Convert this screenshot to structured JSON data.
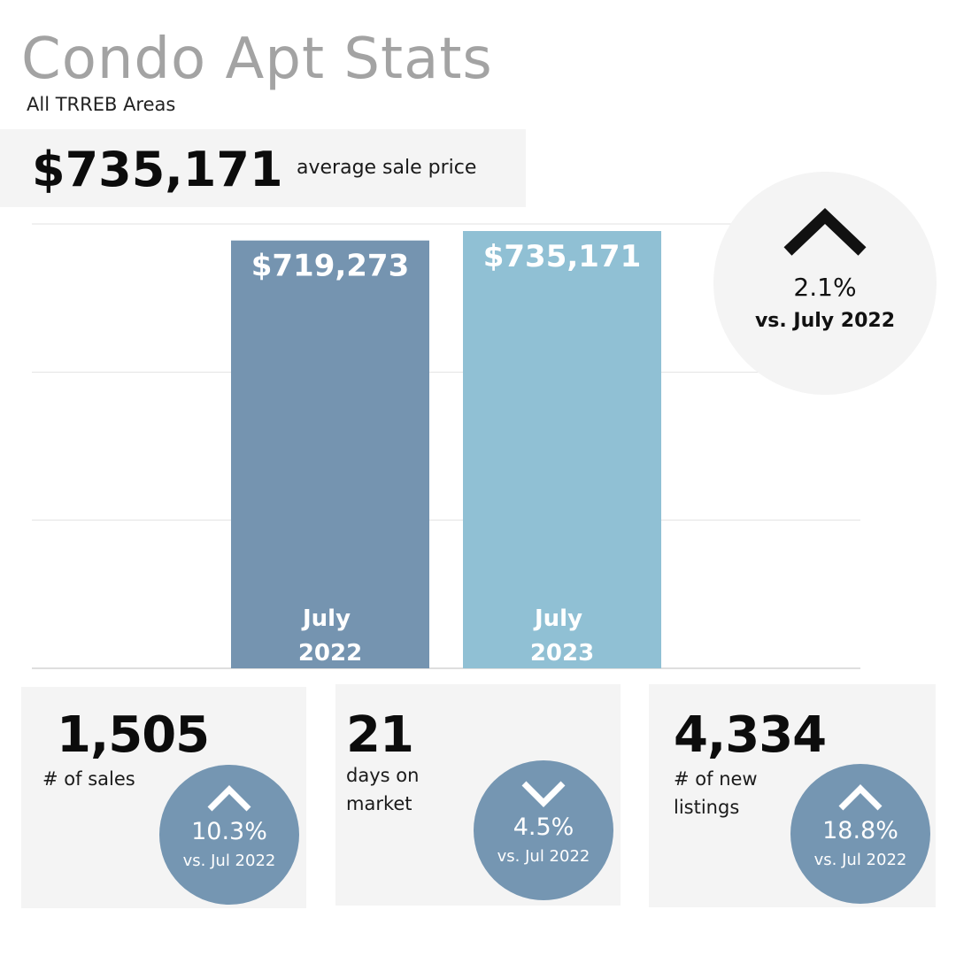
{
  "header": {
    "title": "Condo Apt Stats",
    "subtitle": "All TRREB Areas"
  },
  "headline": {
    "price": "$735,171",
    "label": "average sale price"
  },
  "chart_data": {
    "type": "bar",
    "title": "",
    "xlabel": "",
    "ylabel": "",
    "ylim": [
      0,
      735171
    ],
    "grid": true,
    "categories": [
      "July 2022",
      "July 2023"
    ],
    "category_lines": [
      [
        "July",
        "2022"
      ],
      [
        "July",
        "2023"
      ]
    ],
    "values": [
      719273,
      735171
    ],
    "value_labels": [
      "$719,273",
      "$735,171"
    ],
    "colors": [
      "#7594b0",
      "#90c0d4"
    ]
  },
  "change": {
    "direction": "up",
    "percent": "2.1%",
    "comparison": "vs. July 2022"
  },
  "stats": [
    {
      "value": "1,505",
      "label_lines": [
        "# of sales"
      ],
      "direction": "up",
      "percent": "10.3%",
      "comparison": "vs. Jul 2022"
    },
    {
      "value": "21",
      "label_lines": [
        "days on",
        "market"
      ],
      "direction": "down",
      "percent": "4.5%",
      "comparison": "vs. Jul 2022"
    },
    {
      "value": "4,334",
      "label_lines": [
        "# of new",
        "listings"
      ],
      "direction": "up",
      "percent": "18.8%",
      "comparison": "vs. Jul 2022"
    }
  ],
  "colors": {
    "title_gray": "#a3a3a3",
    "panel_bg": "#f4f4f4",
    "badge_blue": "#7596b2"
  }
}
